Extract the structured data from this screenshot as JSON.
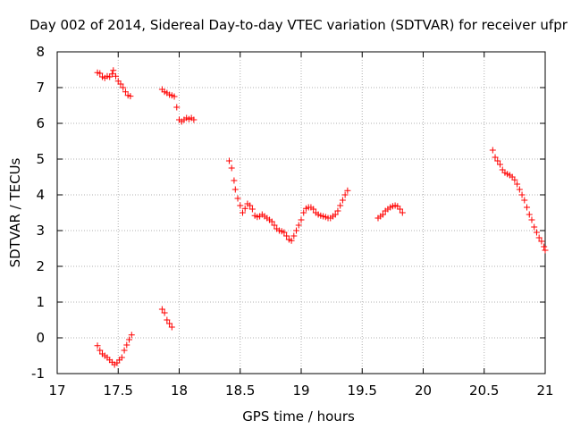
{
  "chart_data": {
    "type": "scatter",
    "title": "Day 002 of 2014, Sidereal Day-to-day VTEC variation (SDTVAR) for receiver ufpr",
    "xlabel": "GPS time / hours",
    "ylabel": "SDTVAR / TECUs",
    "xlim": [
      17,
      21
    ],
    "ylim": [
      -1,
      8
    ],
    "xticks": [
      17,
      17.5,
      18,
      18.5,
      19,
      19.5,
      20,
      20.5,
      21
    ],
    "xtick_labels": [
      "17",
      "17.5",
      "18",
      "18.5",
      "19",
      "19.5",
      "20",
      "20.5",
      "21"
    ],
    "yticks": [
      -1,
      0,
      1,
      2,
      3,
      4,
      5,
      6,
      7,
      8
    ],
    "ytick_labels": [
      "-1",
      "0",
      "1",
      "2",
      "3",
      "4",
      "5",
      "6",
      "7",
      "8"
    ],
    "grid": true,
    "marker": "+",
    "color": "#ff0000",
    "series": [
      {
        "name": "ufpr",
        "points": [
          [
            17.33,
            7.42
          ],
          [
            17.35,
            7.4
          ],
          [
            17.37,
            7.3
          ],
          [
            17.39,
            7.27
          ],
          [
            17.41,
            7.32
          ],
          [
            17.43,
            7.3
          ],
          [
            17.45,
            7.38
          ],
          [
            17.46,
            7.48
          ],
          [
            17.48,
            7.32
          ],
          [
            17.5,
            7.18
          ],
          [
            17.52,
            7.1
          ],
          [
            17.54,
            7.0
          ],
          [
            17.56,
            6.88
          ],
          [
            17.58,
            6.78
          ],
          [
            17.6,
            6.76
          ],
          [
            17.86,
            6.95
          ],
          [
            17.88,
            6.88
          ],
          [
            17.9,
            6.85
          ],
          [
            17.92,
            6.8
          ],
          [
            17.94,
            6.78
          ],
          [
            17.96,
            6.75
          ],
          [
            17.98,
            6.45
          ],
          [
            18.0,
            6.1
          ],
          [
            18.02,
            6.05
          ],
          [
            18.04,
            6.1
          ],
          [
            18.06,
            6.15
          ],
          [
            18.08,
            6.12
          ],
          [
            18.1,
            6.15
          ],
          [
            18.12,
            6.1
          ],
          [
            17.86,
            0.8
          ],
          [
            17.88,
            0.7
          ],
          [
            17.9,
            0.5
          ],
          [
            17.92,
            0.4
          ],
          [
            17.94,
            0.3
          ],
          [
            17.33,
            -0.22
          ],
          [
            17.35,
            -0.35
          ],
          [
            17.37,
            -0.45
          ],
          [
            17.39,
            -0.5
          ],
          [
            17.41,
            -0.55
          ],
          [
            17.43,
            -0.62
          ],
          [
            17.45,
            -0.68
          ],
          [
            17.47,
            -0.75
          ],
          [
            17.49,
            -0.7
          ],
          [
            17.51,
            -0.62
          ],
          [
            17.53,
            -0.55
          ],
          [
            17.55,
            -0.35
          ],
          [
            17.57,
            -0.2
          ],
          [
            17.59,
            -0.05
          ],
          [
            17.61,
            0.08
          ],
          [
            18.41,
            4.95
          ],
          [
            18.43,
            4.75
          ],
          [
            18.45,
            4.4
          ],
          [
            18.46,
            4.15
          ],
          [
            18.48,
            3.9
          ],
          [
            18.5,
            3.7
          ],
          [
            18.52,
            3.5
          ],
          [
            18.54,
            3.62
          ],
          [
            18.56,
            3.75
          ],
          [
            18.58,
            3.7
          ],
          [
            18.6,
            3.6
          ],
          [
            18.62,
            3.42
          ],
          [
            18.64,
            3.38
          ],
          [
            18.66,
            3.4
          ],
          [
            18.68,
            3.45
          ],
          [
            18.7,
            3.4
          ],
          [
            18.72,
            3.35
          ],
          [
            18.74,
            3.3
          ],
          [
            18.76,
            3.25
          ],
          [
            18.78,
            3.15
          ],
          [
            18.8,
            3.05
          ],
          [
            18.82,
            3.0
          ],
          [
            18.84,
            2.98
          ],
          [
            18.86,
            2.95
          ],
          [
            18.88,
            2.85
          ],
          [
            18.9,
            2.75
          ],
          [
            18.92,
            2.72
          ],
          [
            18.94,
            2.85
          ],
          [
            18.96,
            3.0
          ],
          [
            18.98,
            3.15
          ],
          [
            19.0,
            3.3
          ],
          [
            19.02,
            3.5
          ],
          [
            19.04,
            3.62
          ],
          [
            19.06,
            3.65
          ],
          [
            19.08,
            3.65
          ],
          [
            19.1,
            3.6
          ],
          [
            19.12,
            3.5
          ],
          [
            19.14,
            3.45
          ],
          [
            19.16,
            3.42
          ],
          [
            19.18,
            3.4
          ],
          [
            19.2,
            3.38
          ],
          [
            19.22,
            3.35
          ],
          [
            19.24,
            3.35
          ],
          [
            19.26,
            3.4
          ],
          [
            19.28,
            3.45
          ],
          [
            19.3,
            3.55
          ],
          [
            19.32,
            3.7
          ],
          [
            19.34,
            3.85
          ],
          [
            19.36,
            4.0
          ],
          [
            19.38,
            4.12
          ],
          [
            19.63,
            3.35
          ],
          [
            19.65,
            3.4
          ],
          [
            19.67,
            3.45
          ],
          [
            19.69,
            3.55
          ],
          [
            19.71,
            3.6
          ],
          [
            19.73,
            3.65
          ],
          [
            19.75,
            3.68
          ],
          [
            19.77,
            3.7
          ],
          [
            19.79,
            3.68
          ],
          [
            19.81,
            3.6
          ],
          [
            19.83,
            3.5
          ],
          [
            20.57,
            5.25
          ],
          [
            20.59,
            5.05
          ],
          [
            20.61,
            4.95
          ],
          [
            20.63,
            4.85
          ],
          [
            20.65,
            4.7
          ],
          [
            20.67,
            4.62
          ],
          [
            20.69,
            4.58
          ],
          [
            20.71,
            4.55
          ],
          [
            20.73,
            4.5
          ],
          [
            20.75,
            4.42
          ],
          [
            20.77,
            4.3
          ],
          [
            20.79,
            4.15
          ],
          [
            20.81,
            4.0
          ],
          [
            20.83,
            3.85
          ],
          [
            20.85,
            3.65
          ],
          [
            20.87,
            3.45
          ],
          [
            20.89,
            3.3
          ],
          [
            20.91,
            3.1
          ],
          [
            20.93,
            2.95
          ],
          [
            20.95,
            2.8
          ],
          [
            20.97,
            2.7
          ],
          [
            20.99,
            2.55
          ],
          [
            21.0,
            2.45
          ]
        ]
      }
    ]
  }
}
